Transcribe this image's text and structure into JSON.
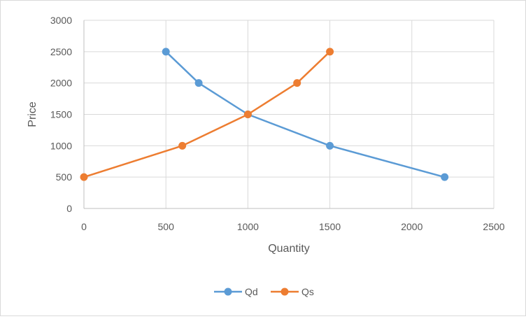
{
  "chart_data": {
    "type": "scatter",
    "xlabel": "Quantity",
    "ylabel": "Price",
    "xlim": [
      0,
      2500
    ],
    "ylim": [
      0,
      3000
    ],
    "xticks": [
      0,
      500,
      1000,
      1500,
      2000,
      2500
    ],
    "yticks": [
      0,
      500,
      1000,
      1500,
      2000,
      2500,
      3000
    ],
    "grid": true,
    "legend": "bottom",
    "series": [
      {
        "name": "Qd",
        "color": "#5b9bd5",
        "points": [
          {
            "x": 500,
            "y": 2500
          },
          {
            "x": 700,
            "y": 2000
          },
          {
            "x": 1000,
            "y": 1500
          },
          {
            "x": 1500,
            "y": 1000
          },
          {
            "x": 2200,
            "y": 500
          }
        ]
      },
      {
        "name": "Qs",
        "color": "#ed7d31",
        "points": [
          {
            "x": 0,
            "y": 500
          },
          {
            "x": 600,
            "y": 1000
          },
          {
            "x": 1000,
            "y": 1500
          },
          {
            "x": 1300,
            "y": 2000
          },
          {
            "x": 1500,
            "y": 2500
          }
        ]
      }
    ]
  }
}
